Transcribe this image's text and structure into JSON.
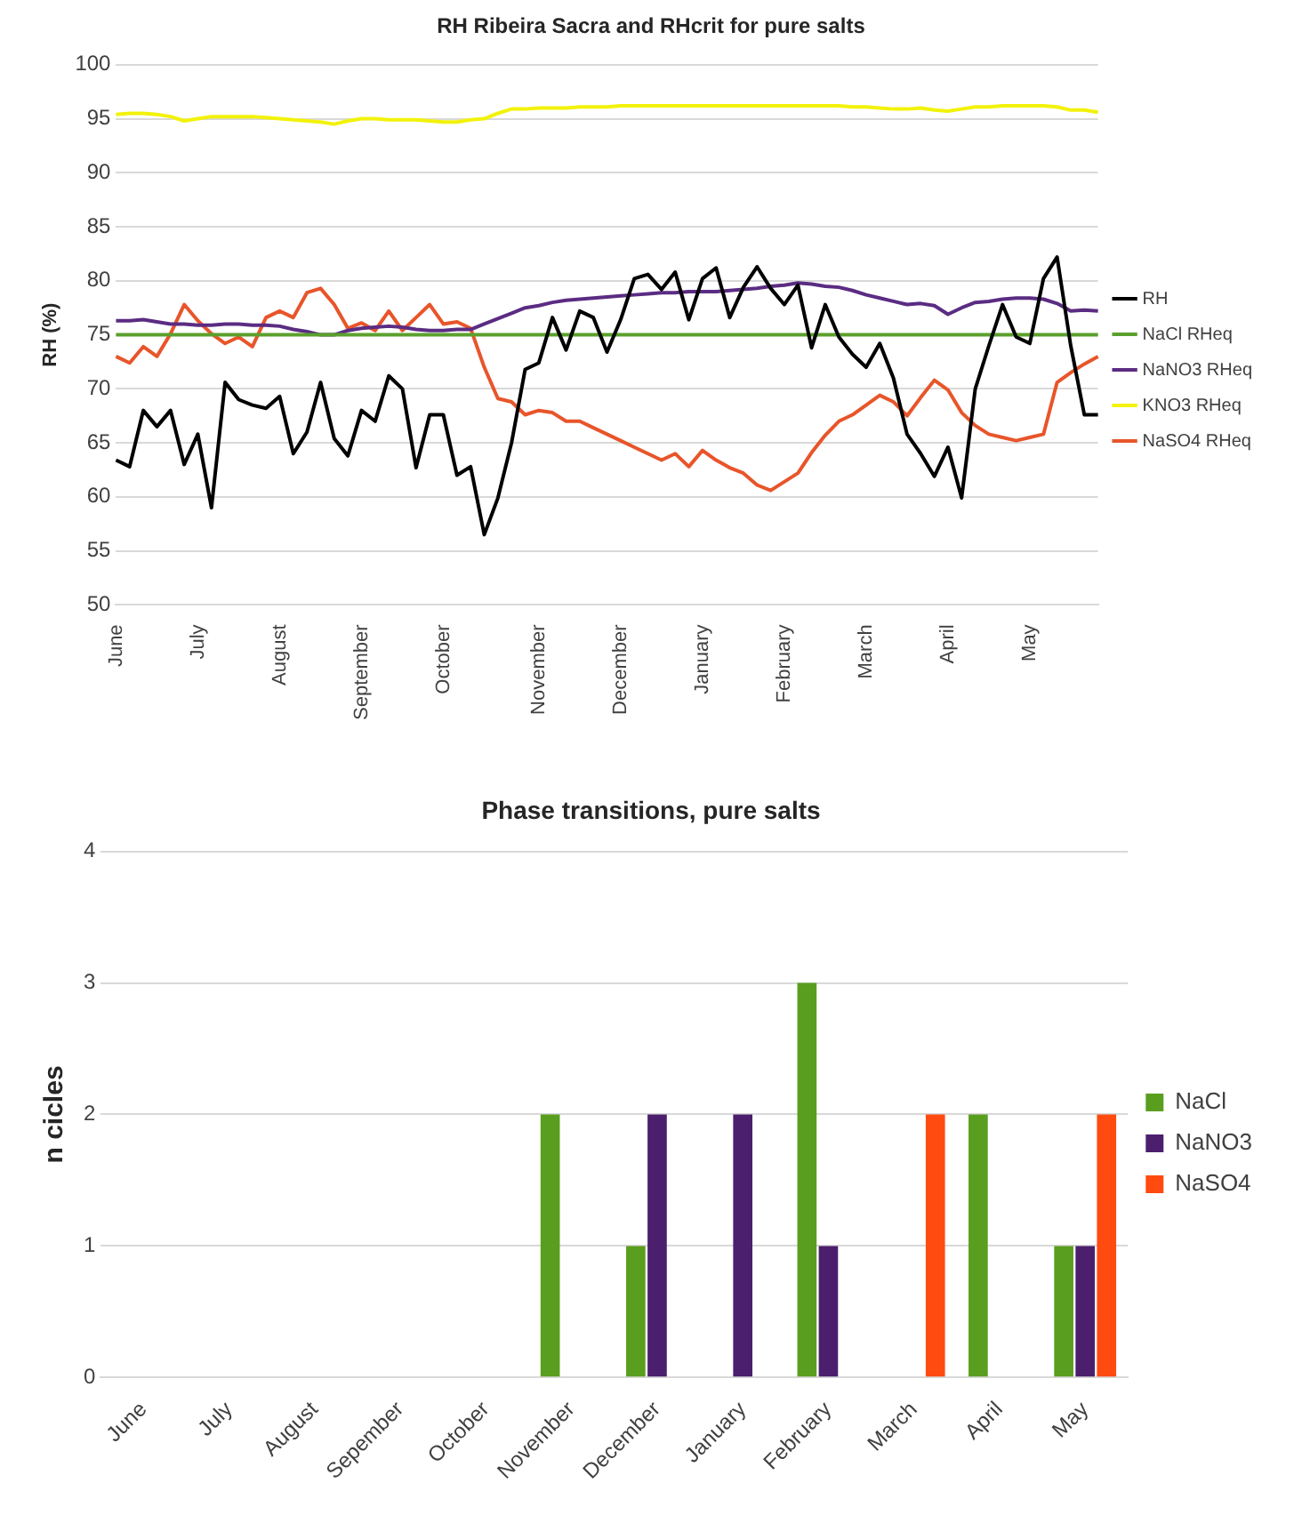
{
  "chart_data": [
    {
      "type": "line",
      "title": "RH Ribeira Sacra and RHcrit for pure salts",
      "ylabel": "RH (%)",
      "categories": [
        "June",
        null,
        null,
        null,
        null,
        null,
        "July",
        null,
        null,
        null,
        null,
        null,
        "August",
        null,
        null,
        null,
        null,
        null,
        "September",
        null,
        null,
        null,
        null,
        null,
        "October",
        null,
        null,
        null,
        null,
        null,
        null,
        "November",
        null,
        null,
        null,
        null,
        null,
        "December",
        null,
        null,
        null,
        null,
        null,
        "January",
        null,
        null,
        null,
        null,
        null,
        "February",
        null,
        null,
        null,
        null,
        null,
        "March",
        null,
        null,
        null,
        null,
        null,
        "April",
        null,
        null,
        null,
        null,
        null,
        "May",
        null,
        null,
        null,
        null,
        null
      ],
      "ylim": [
        50,
        100
      ],
      "yticks": [
        50,
        55,
        60,
        65,
        70,
        75,
        80,
        85,
        90,
        95,
        100
      ],
      "grid": "y",
      "legend": "right",
      "marker": "none",
      "line_style": "solid",
      "series": [
        {
          "name": "RH",
          "color": "#000000",
          "values": [
            63.4,
            62.8,
            68.0,
            66.5,
            68.0,
            63.0,
            65.8,
            59.0,
            70.6,
            69.0,
            68.5,
            68.2,
            69.3,
            64.0,
            66.0,
            70.6,
            65.4,
            63.8,
            68.0,
            67.0,
            71.2,
            70.0,
            62.7,
            67.6,
            67.6,
            62.0,
            62.8,
            56.5,
            59.9,
            65.0,
            71.8,
            72.4,
            76.6,
            73.6,
            77.2,
            76.6,
            73.4,
            76.4,
            80.2,
            80.6,
            79.2,
            80.8,
            76.4,
            80.2,
            81.2,
            76.6,
            79.4,
            81.3,
            79.3,
            77.8,
            79.6,
            73.8,
            77.8,
            74.8,
            73.2,
            72.0,
            74.2,
            71.0,
            65.8,
            64.0,
            61.9,
            64.6,
            59.9,
            70.0,
            74.0,
            77.8,
            74.8,
            74.2,
            80.2,
            82.2,
            74.0,
            67.6,
            67.6
          ]
        },
        {
          "name": "NaCl RHeq",
          "color": "#5aa02c",
          "values": [
            75,
            75,
            75,
            75,
            75,
            75,
            75,
            75,
            75,
            75,
            75,
            75,
            75,
            75,
            75,
            75,
            75,
            75,
            75,
            75,
            75,
            75,
            75,
            75,
            75,
            75,
            75,
            75,
            75,
            75,
            75,
            75,
            75,
            75,
            75,
            75,
            75,
            75,
            75,
            75,
            75,
            75,
            75,
            75,
            75,
            75,
            75,
            75,
            75,
            75,
            75,
            75,
            75,
            75,
            75,
            75,
            75,
            75,
            75,
            75,
            75,
            75,
            75,
            75,
            75,
            75,
            75,
            75,
            75,
            75,
            75,
            75,
            75
          ]
        },
        {
          "name": "NaNO3 RHeq",
          "color": "#5b2c83",
          "values": [
            76.3,
            76.3,
            76.4,
            76.2,
            76.0,
            76.0,
            75.9,
            75.9,
            76.0,
            76.0,
            75.9,
            75.9,
            75.8,
            75.5,
            75.3,
            75.0,
            75.0,
            75.4,
            75.6,
            75.7,
            75.8,
            75.7,
            75.5,
            75.4,
            75.4,
            75.5,
            75.5,
            76.0,
            76.5,
            77.0,
            77.5,
            77.7,
            78.0,
            78.2,
            78.3,
            78.4,
            78.5,
            78.6,
            78.7,
            78.8,
            78.9,
            78.9,
            79.0,
            79.0,
            79.0,
            79.1,
            79.2,
            79.3,
            79.5,
            79.6,
            79.8,
            79.7,
            79.5,
            79.4,
            79.1,
            78.7,
            78.4,
            78.1,
            77.8,
            77.9,
            77.7,
            76.9,
            77.5,
            78.0,
            78.1,
            78.3,
            78.4,
            78.4,
            78.3,
            77.9,
            77.2,
            77.3,
            77.2
          ]
        },
        {
          "name": "KNO3 RHeq",
          "color": "#f2f20a",
          "values": [
            95.4,
            95.5,
            95.5,
            95.4,
            95.2,
            94.8,
            95.0,
            95.2,
            95.2,
            95.2,
            95.2,
            95.1,
            95.0,
            94.9,
            94.8,
            94.7,
            94.5,
            94.8,
            95.0,
            95.0,
            94.9,
            94.9,
            94.9,
            94.8,
            94.7,
            94.7,
            94.9,
            95.0,
            95.5,
            95.9,
            95.9,
            96.0,
            96.0,
            96.0,
            96.1,
            96.1,
            96.1,
            96.2,
            96.2,
            96.2,
            96.2,
            96.2,
            96.2,
            96.2,
            96.2,
            96.2,
            96.2,
            96.2,
            96.2,
            96.2,
            96.2,
            96.2,
            96.2,
            96.2,
            96.1,
            96.1,
            96.0,
            95.9,
            95.9,
            96.0,
            95.8,
            95.7,
            95.9,
            96.1,
            96.1,
            96.2,
            96.2,
            96.2,
            96.2,
            96.1,
            95.8,
            95.8,
            95.6
          ]
        },
        {
          "name": "NaSO4 RHeq",
          "color": "#e8552a",
          "values": [
            73.0,
            72.4,
            73.9,
            73.0,
            75.1,
            77.8,
            76.3,
            75.1,
            74.2,
            74.8,
            73.9,
            76.6,
            77.2,
            76.6,
            78.9,
            79.3,
            77.8,
            75.6,
            76.1,
            75.4,
            77.2,
            75.4,
            76.6,
            77.8,
            76.0,
            76.2,
            75.6,
            72.0,
            69.1,
            68.8,
            67.6,
            68.0,
            67.8,
            67.0,
            67.0,
            66.4,
            65.8,
            65.2,
            64.6,
            64.0,
            63.4,
            64.0,
            62.8,
            64.3,
            63.4,
            62.7,
            62.2,
            61.1,
            60.6,
            61.4,
            62.2,
            64.1,
            65.7,
            67.0,
            67.6,
            68.5,
            69.4,
            68.8,
            67.5,
            69.2,
            70.8,
            69.9,
            67.8,
            66.6,
            65.8,
            65.5,
            65.2,
            65.5,
            65.8,
            70.6,
            71.5,
            72.3,
            73.0
          ]
        }
      ]
    },
    {
      "type": "bar",
      "title": "Phase transitions, pure salts",
      "ylabel": "n cicles",
      "categories": [
        "June",
        "July",
        "August",
        "Sepember",
        "October",
        "November",
        "December",
        "January",
        "February",
        "March",
        "April",
        "May"
      ],
      "ylim": [
        0,
        4
      ],
      "yticks": [
        0,
        1,
        2,
        3,
        4
      ],
      "grid": "y",
      "legend": "right",
      "series": [
        {
          "name": "NaCl",
          "color": "#5a9e1f",
          "values": [
            0,
            0,
            0,
            0,
            0,
            2,
            1,
            0,
            3,
            0,
            2,
            1
          ]
        },
        {
          "name": "NaNO3",
          "color": "#4b1f6e",
          "values": [
            0,
            0,
            0,
            0,
            0,
            0,
            2,
            2,
            1,
            0,
            0,
            1
          ]
        },
        {
          "name": "NaSO4",
          "color": "#ff4a10",
          "values": [
            0,
            0,
            0,
            0,
            0,
            0,
            0,
            0,
            0,
            2,
            0,
            2
          ]
        }
      ]
    }
  ]
}
